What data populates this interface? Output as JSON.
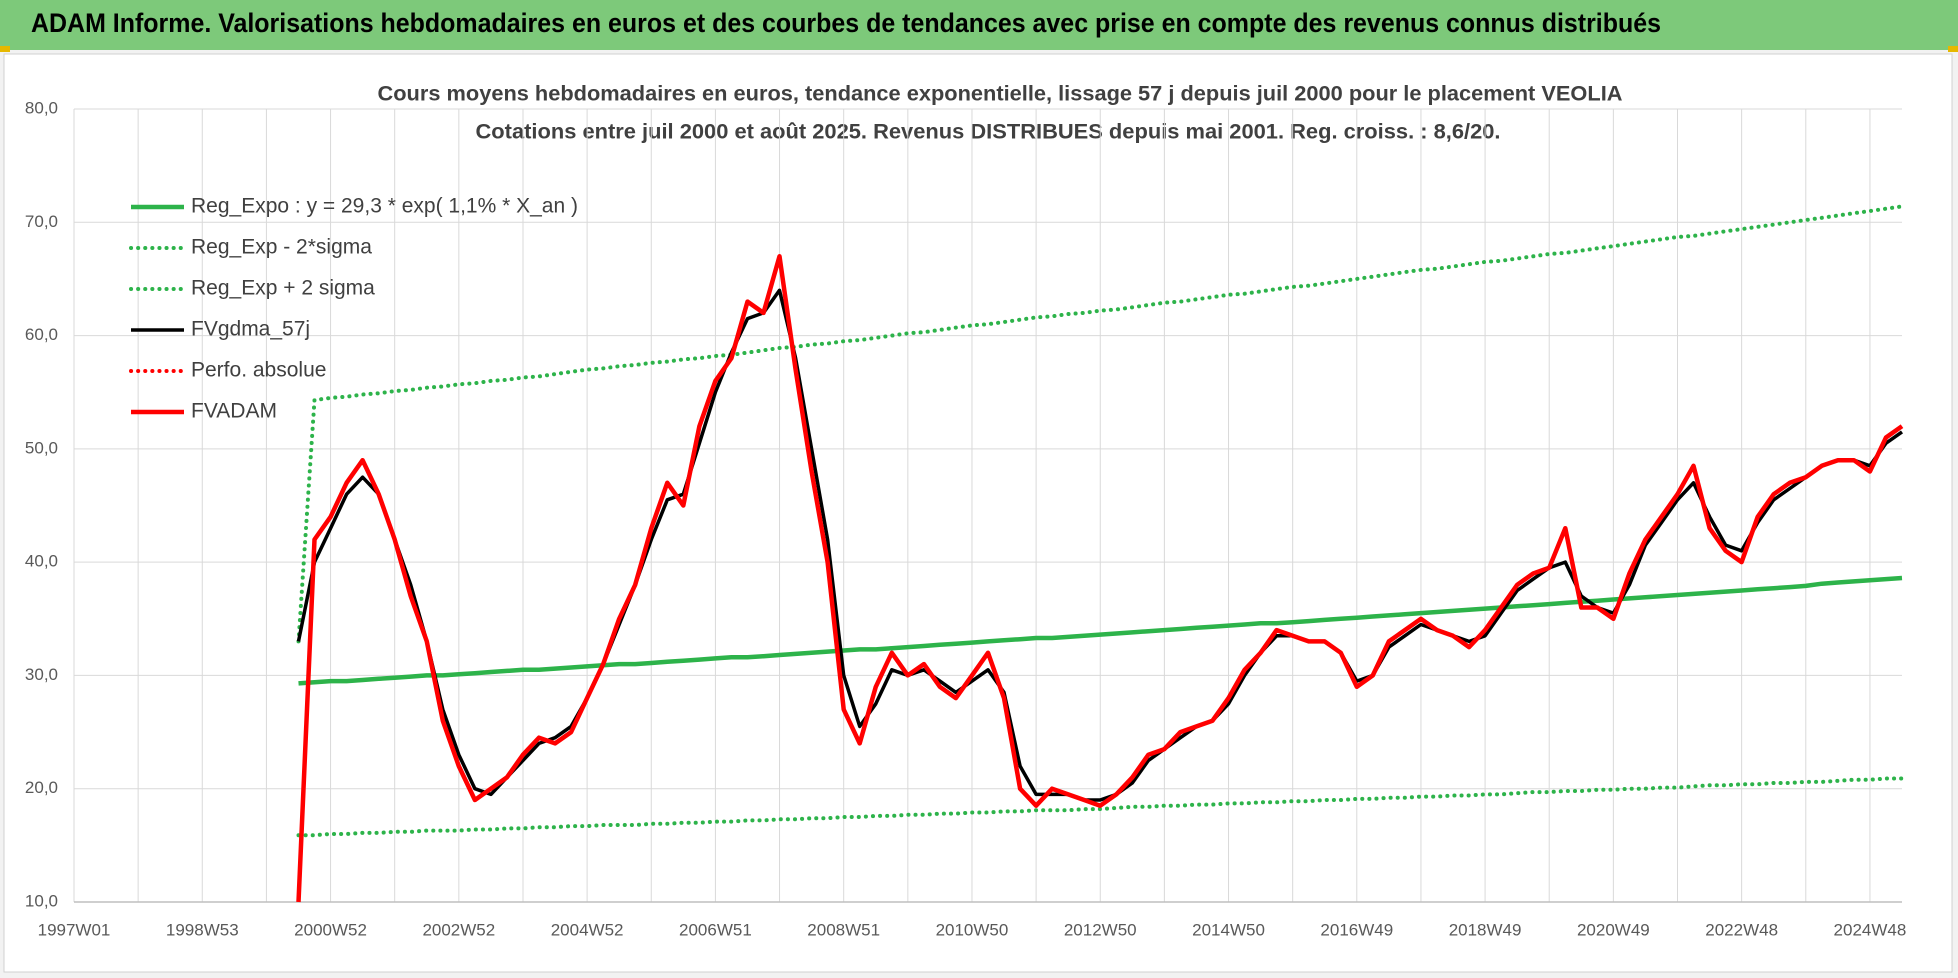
{
  "header": {
    "title": "ADAM Informe. Valorisations hebdomadaires en euros et des courbes de tendances avec prise en compte des revenus connus distribués"
  },
  "chart_data": {
    "type": "line",
    "title": "Cours moyens hebdomadaires en euros, tendance exponentielle, lissage 57 j depuis juil 2000 pour le placement VEOLIA",
    "subtitle": "Cotations entre juil 2000 et août 2025. Revenus DISTRIBUES depuis mai 2001.  Reg. croiss. : 8,6/20.",
    "categories": [
      "1997W01",
      null,
      null,
      null,
      null,
      null,
      null,
      null,
      "1998W53",
      null,
      null,
      null,
      null,
      null,
      null,
      null,
      "2000W52",
      null,
      null,
      null,
      null,
      null,
      null,
      null,
      "2002W52",
      null,
      null,
      null,
      null,
      null,
      null,
      null,
      "2004W52",
      null,
      null,
      null,
      null,
      null,
      null,
      null,
      "2006W51",
      null,
      null,
      null,
      null,
      null,
      null,
      null,
      "2008W51",
      null,
      null,
      null,
      null,
      null,
      null,
      null,
      "2010W50",
      null,
      null,
      null,
      null,
      null,
      null,
      null,
      "2012W50",
      null,
      null,
      null,
      null,
      null,
      null,
      null,
      "2014W50",
      null,
      null,
      null,
      null,
      null,
      null,
      null,
      "2016W49",
      null,
      null,
      null,
      null,
      null,
      null,
      null,
      "2018W49",
      null,
      null,
      null,
      null,
      null,
      null,
      null,
      "2020W49",
      null,
      null,
      null,
      null,
      null,
      null,
      null,
      "2022W48",
      null,
      null,
      null,
      null,
      null,
      null,
      null,
      "2024W48",
      null,
      null
    ],
    "ylim": [
      10,
      80
    ],
    "yticks": [
      {
        "value": 10,
        "label": "10,0"
      },
      {
        "value": 20,
        "label": "20,0"
      },
      {
        "value": 30,
        "label": "30,0"
      },
      {
        "value": 40,
        "label": "40,0"
      },
      {
        "value": 50,
        "label": "50,0"
      },
      {
        "value": 60,
        "label": "60,0"
      },
      {
        "value": 70,
        "label": "70,0"
      },
      {
        "value": 80,
        "label": "80,0"
      }
    ],
    "grid": true,
    "legend": "top-left",
    "series": [
      {
        "name": "Reg_Expo : y = 29,3 * exp( 1,1% *  X_an )",
        "color": "#2db34a",
        "line_style": "solid",
        "values": [
          null,
          null,
          null,
          null,
          null,
          null,
          null,
          null,
          null,
          null,
          null,
          null,
          null,
          null,
          29.3,
          29.4,
          29.5,
          29.5,
          29.6,
          29.7,
          29.8,
          29.9,
          30.0,
          30.0,
          30.1,
          30.2,
          30.3,
          30.4,
          30.5,
          30.5,
          30.6,
          30.7,
          30.8,
          30.9,
          31.0,
          31.0,
          31.1,
          31.2,
          31.3,
          31.4,
          31.5,
          31.6,
          31.6,
          31.7,
          31.8,
          31.9,
          32.0,
          32.1,
          32.2,
          32.3,
          32.3,
          32.4,
          32.5,
          32.6,
          32.7,
          32.8,
          32.9,
          33.0,
          33.1,
          33.2,
          33.3,
          33.3,
          33.4,
          33.5,
          33.6,
          33.7,
          33.8,
          33.9,
          34.0,
          34.1,
          34.2,
          34.3,
          34.4,
          34.5,
          34.6,
          34.6,
          34.7,
          34.8,
          34.9,
          35.0,
          35.1,
          35.2,
          35.3,
          35.4,
          35.5,
          35.6,
          35.7,
          35.8,
          35.9,
          36.0,
          36.1,
          36.2,
          36.3,
          36.4,
          36.5,
          36.6,
          36.7,
          36.8,
          36.9,
          37.0,
          37.1,
          37.2,
          37.3,
          37.4,
          37.5,
          37.6,
          37.7,
          37.8,
          37.9,
          38.1,
          38.2,
          38.3,
          38.4,
          38.5,
          38.6
        ]
      },
      {
        "name": "Reg_Exp - 2*sigma",
        "color": "#2db34a",
        "line_style": "dotted",
        "values": [
          null,
          null,
          null,
          null,
          null,
          null,
          null,
          null,
          null,
          null,
          null,
          null,
          null,
          null,
          15.9,
          15.9,
          16.0,
          16.0,
          16.1,
          16.1,
          16.2,
          16.2,
          16.3,
          16.3,
          16.3,
          16.4,
          16.4,
          16.5,
          16.5,
          16.6,
          16.6,
          16.7,
          16.7,
          16.8,
          16.8,
          16.8,
          16.9,
          16.9,
          17.0,
          17.0,
          17.1,
          17.1,
          17.2,
          17.2,
          17.3,
          17.3,
          17.4,
          17.4,
          17.5,
          17.5,
          17.6,
          17.6,
          17.7,
          17.7,
          17.8,
          17.8,
          17.9,
          17.9,
          18.0,
          18.0,
          18.1,
          18.1,
          18.1,
          18.2,
          18.2,
          18.3,
          18.4,
          18.4,
          18.5,
          18.5,
          18.6,
          18.6,
          18.7,
          18.7,
          18.8,
          18.8,
          18.9,
          18.9,
          19.0,
          19.0,
          19.1,
          19.1,
          19.2,
          19.2,
          19.3,
          19.3,
          19.4,
          19.4,
          19.5,
          19.5,
          19.6,
          19.7,
          19.7,
          19.8,
          19.8,
          19.9,
          19.9,
          20.0,
          20.0,
          20.1,
          20.1,
          20.2,
          20.3,
          20.3,
          20.4,
          20.4,
          20.5,
          20.5,
          20.6,
          20.6,
          20.7,
          20.8,
          20.8,
          20.9,
          20.9
        ]
      },
      {
        "name": "Reg_Exp + 2 sigma",
        "color": "#2db34a",
        "line_style": "dotted",
        "values": [
          null,
          null,
          null,
          null,
          null,
          null,
          null,
          null,
          null,
          null,
          null,
          null,
          null,
          null,
          33.0,
          54.3,
          54.5,
          54.6,
          54.8,
          54.9,
          55.1,
          55.2,
          55.4,
          55.5,
          55.7,
          55.8,
          56.0,
          56.1,
          56.3,
          56.4,
          56.6,
          56.8,
          57.0,
          57.1,
          57.3,
          57.4,
          57.6,
          57.7,
          57.9,
          58.0,
          58.2,
          58.3,
          58.5,
          58.7,
          58.9,
          59.0,
          59.2,
          59.3,
          59.5,
          59.6,
          59.8,
          60.0,
          60.2,
          60.3,
          60.5,
          60.7,
          60.9,
          61.0,
          61.2,
          61.4,
          61.6,
          61.7,
          61.9,
          62.0,
          62.2,
          62.3,
          62.5,
          62.7,
          62.9,
          63.0,
          63.2,
          63.4,
          63.6,
          63.7,
          63.9,
          64.1,
          64.3,
          64.4,
          64.6,
          64.8,
          65.0,
          65.2,
          65.4,
          65.6,
          65.8,
          65.9,
          66.1,
          66.3,
          66.5,
          66.6,
          66.8,
          67.0,
          67.2,
          67.3,
          67.5,
          67.7,
          67.9,
          68.1,
          68.3,
          68.5,
          68.7,
          68.8,
          69.0,
          69.2,
          69.4,
          69.6,
          69.8,
          70.0,
          70.2,
          70.4,
          70.6,
          70.8,
          71.0,
          71.2,
          71.4
        ]
      },
      {
        "name": "FVgdma_57j",
        "color": "#000000",
        "line_style": "solid",
        "values": [
          null,
          null,
          null,
          null,
          null,
          null,
          null,
          null,
          null,
          null,
          null,
          null,
          null,
          null,
          33,
          40,
          43,
          46,
          47.5,
          46,
          42,
          38,
          33,
          27,
          23,
          20,
          19.5,
          21,
          22.5,
          24,
          24.5,
          25.5,
          28,
          31,
          34.5,
          38,
          42,
          45.5,
          46,
          50.5,
          55,
          58.5,
          61.5,
          62,
          64,
          58,
          50,
          42,
          30,
          25.5,
          27.5,
          30.5,
          30,
          30.5,
          29.5,
          28.5,
          29.5,
          30.5,
          28.5,
          22,
          19.5,
          19.5,
          19.5,
          19,
          19,
          19.5,
          20.5,
          22.5,
          23.5,
          24.5,
          25.5,
          26,
          27.5,
          30,
          32,
          33.5,
          33.5,
          33,
          33,
          32,
          29.5,
          30,
          32.5,
          33.5,
          34.5,
          34,
          33.5,
          33,
          33.5,
          35.5,
          37.5,
          38.5,
          39.5,
          40,
          37,
          36,
          35.5,
          38,
          41.5,
          43.5,
          45.5,
          47,
          44,
          41.5,
          41,
          43.5,
          45.5,
          46.5,
          47.5,
          48.5,
          49,
          49,
          48.5,
          50.5,
          51.5
        ]
      },
      {
        "name": "Perfo. absolue",
        "color": "#ff0000",
        "line_style": "dotted",
        "values": [
          null,
          null,
          null,
          null,
          null,
          null,
          null,
          null,
          null,
          null,
          null,
          null,
          null,
          null,
          null,
          null,
          null,
          null,
          null,
          null,
          null,
          null,
          null,
          null,
          null,
          null,
          null,
          null,
          null,
          null,
          null,
          null,
          null,
          null,
          null,
          null,
          null,
          null,
          null,
          null,
          null,
          null,
          null,
          null,
          null,
          null,
          null,
          null,
          null,
          null,
          null,
          null,
          null,
          null,
          null,
          null,
          null,
          null,
          null,
          null,
          null,
          null,
          null,
          null,
          null,
          null,
          null,
          null,
          null,
          null,
          null,
          null,
          null,
          null,
          null,
          null,
          null,
          null,
          null,
          null,
          null,
          null,
          null,
          null,
          null,
          null,
          null,
          null,
          null,
          null,
          null,
          null,
          null,
          null,
          null,
          null,
          null,
          null,
          null,
          null,
          null,
          null,
          null,
          null,
          null,
          null,
          null,
          null,
          null,
          null,
          null,
          null,
          null,
          null,
          null
        ]
      },
      {
        "name": "FVADAM",
        "color": "#ff0000",
        "line_style": "solid",
        "values": [
          null,
          null,
          null,
          null,
          null,
          null,
          null,
          null,
          null,
          null,
          null,
          null,
          null,
          null,
          10,
          42,
          44,
          47,
          49,
          46,
          42,
          37,
          33,
          26,
          22,
          19,
          20,
          21,
          23,
          24.5,
          24,
          25,
          28,
          31,
          35,
          38,
          43,
          47,
          45,
          52,
          56,
          58,
          63,
          62,
          67,
          57,
          48,
          40,
          27,
          24,
          29,
          32,
          30,
          31,
          29,
          28,
          30,
          32,
          28,
          20,
          18.5,
          20,
          19.5,
          19,
          18.5,
          19.5,
          21,
          23,
          23.5,
          25,
          25.5,
          26,
          28,
          30.5,
          32,
          34,
          33.5,
          33,
          33,
          32,
          29,
          30,
          33,
          34,
          35,
          34,
          33.5,
          32.5,
          34,
          36,
          38,
          39,
          39.5,
          43,
          36,
          36,
          35,
          39,
          42,
          44,
          46,
          48.5,
          43,
          41,
          40,
          44,
          46,
          47,
          47.5,
          48.5,
          49,
          49,
          48,
          51,
          52
        ]
      }
    ]
  }
}
